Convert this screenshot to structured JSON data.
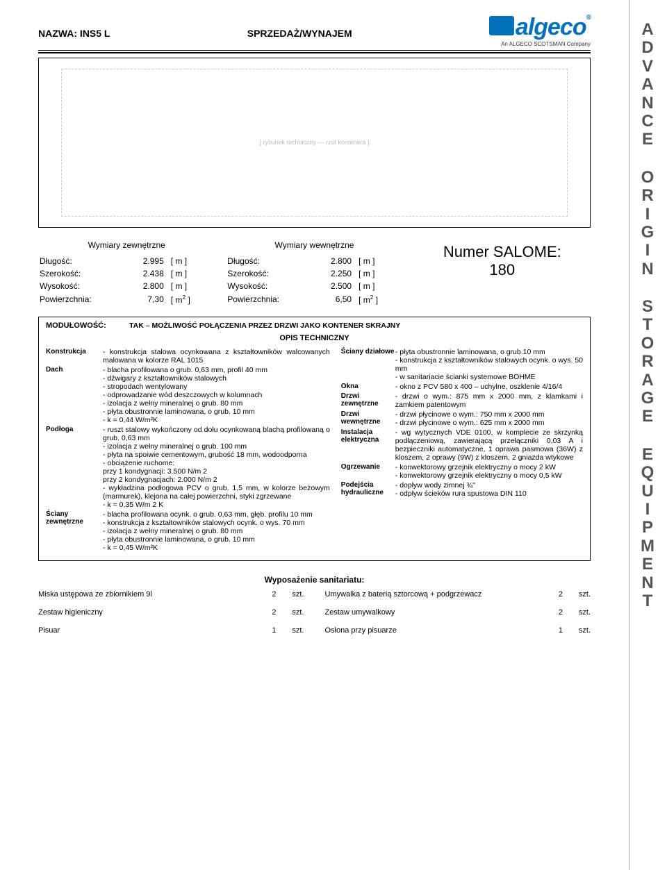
{
  "header": {
    "name_label": "NAZWA:",
    "name_value": "INS5 L",
    "subtitle": "SPRZEDAŻ/WYNAJEM",
    "logo_text": "algeco",
    "logo_sub": "An ALGECO SCOTSMAN Company",
    "logo_color": "#0072bc"
  },
  "side_words": [
    "ADVANCE",
    "ORIGIN",
    "STORAGE",
    "EQUIPMENT"
  ],
  "drawing_placeholder": "[ rysunek techniczny — rzut kontenera ]",
  "ext_dims": {
    "title": "Wymiary zewnętrzne",
    "rows": [
      {
        "label": "Długość:",
        "value": "2.995",
        "unit": "[ m ]"
      },
      {
        "label": "Szerokość:",
        "value": "2.438",
        "unit": "[ m ]"
      },
      {
        "label": "Wysokość:",
        "value": "2.800",
        "unit": "[ m ]"
      },
      {
        "label": "Powierzchnia:",
        "value": "7,30",
        "unit": "[ m² ]"
      }
    ]
  },
  "int_dims": {
    "title": "Wymiary wewnętrzne",
    "rows": [
      {
        "label": "Długość:",
        "value": "2.800",
        "unit": "[ m ]"
      },
      {
        "label": "Szerokość:",
        "value": "2.250",
        "unit": "[ m ]"
      },
      {
        "label": "Wysokość:",
        "value": "2.500",
        "unit": "[ m ]"
      },
      {
        "label": "Powierzchnia:",
        "value": "6,50",
        "unit": "[ m² ]"
      }
    ]
  },
  "salome": {
    "label": "Numer SALOME:",
    "value": "180"
  },
  "modularity": {
    "label": "MODUŁOWOŚĆ:",
    "value": "TAK – MOŻLIWOŚĆ POŁĄCZENIA PRZEZ DRZWI JAKO KONTENER SKRAJNY"
  },
  "opis_title": "OPIS TECHNICZNY",
  "tech_left": [
    {
      "label": "Konstrukcja",
      "desc": "- konstrukcja stalowa ocynkowana z kształtowników walcowanych malowana w kolorze RAL 1015"
    },
    {
      "label": "Dach",
      "desc": "- blacha profilowana o grub. 0,63 mm, profil 40 mm\n- dźwigary z kształtowników stalowych\n- stropodach wentylowany\n- odprowadzanie wód deszczowych w kolumnach\n- izolacja z wełny mineralnej o grub. 80 mm\n- płyta obustronnie laminowana, o grub. 10 mm\n- k = 0,44 W/m²K"
    },
    {
      "label": "Podłoga",
      "desc": "- ruszt stalowy wykończony od dołu ocynkowaną blachą profilowaną o grub. 0,63 mm\n- izolacja z wełny mineralnej o grub. 100 mm\n- płyta na spoiwie cementowym, grubość 18 mm, wodoodporna\n- obciążenie ruchome:\n  przy 1 kondygnacji:            3.500 N/m 2\n  przy 2 kondygnacjach:        2.000 N/m 2\n- wykładzina podłogowa PCV o grub. 1,5 mm, w kolorze beżowym (marmurek), klejona na całej powierzchni, styki zgrzewane\n- k = 0,35 W/m 2 K"
    },
    {
      "label": "Ściany zewnętrzne",
      "desc": "- blacha profilowana ocynk. o grub. 0,63 mm, głęb. profilu 10 mm\n- konstrukcja z kształtowników stalowych ocynk. o wys. 70 mm\n- izolacja z wełny mineralnej o grub. 80 mm\n- płyta obustronnie laminowana, o grub. 10 mm\n- k = 0,45 W/m²K"
    }
  ],
  "tech_right": [
    {
      "label": "Ściany działowe",
      "desc": "- płyta obustronnie laminowana, o grub.10 mm\n- konstrukcja z kształtowników stalowych ocynk. o wys. 50 mm\n- w sanitariacie ścianki systemowe BOHME"
    },
    {
      "label": "Okna",
      "desc": "- okno z PCV 580 x 400 – uchylne, oszklenie 4/16/4"
    },
    {
      "label": "Drzwi zewnętrzne",
      "desc": "- drzwi o wym.: 875 mm x 2000 mm, z klamkami i zamkiem patentowym"
    },
    {
      "label": "Drzwi wewnętrzne",
      "desc": "- drzwi płycinowe o wym.: 750 mm x 2000 mm\n- drzwi płycinowe o wym.: 625 mm x 2000 mm"
    },
    {
      "label": "Instalacja elektryczna",
      "desc": "- wg wytycznych VDE 0100, w komplecie ze skrzynką podłączeniową, zawierającą przełączniki 0,03 A i bezpieczniki automatyczne, 1 oprawa pasmowa (36W) z kloszem, 2 oprawy (9W) z kloszem, 2 gniazda wtykowe"
    },
    {
      "label": "Ogrzewanie",
      "desc": "- konwektorowy grzejnik elektryczny o mocy 2 kW\n- konwektorowy grzejnik elektryczny o mocy 0,5 kW"
    },
    {
      "label": "Podejścia hydrauliczne",
      "desc": "- dopływ wody zimnej ¾\"\n- odpływ ścieków rura spustowa DIN 110"
    }
  ],
  "equipment": {
    "title": "Wyposażenie sanitariatu:",
    "left": [
      {
        "name": "Miska ustępowa ze zbiornikiem 9l",
        "qty": "2",
        "unit": "szt."
      },
      {
        "name": "Zestaw higieniczny",
        "qty": "2",
        "unit": "szt."
      },
      {
        "name": "Pisuar",
        "qty": "1",
        "unit": "szt."
      }
    ],
    "right": [
      {
        "name": "Umywalka z baterią sztorcową + podgrzewacz",
        "qty": "2",
        "unit": "szt."
      },
      {
        "name": "Zestaw umywalkowy",
        "qty": "2",
        "unit": "szt."
      },
      {
        "name": "Osłona przy pisuarze",
        "qty": "1",
        "unit": "szt."
      }
    ]
  }
}
